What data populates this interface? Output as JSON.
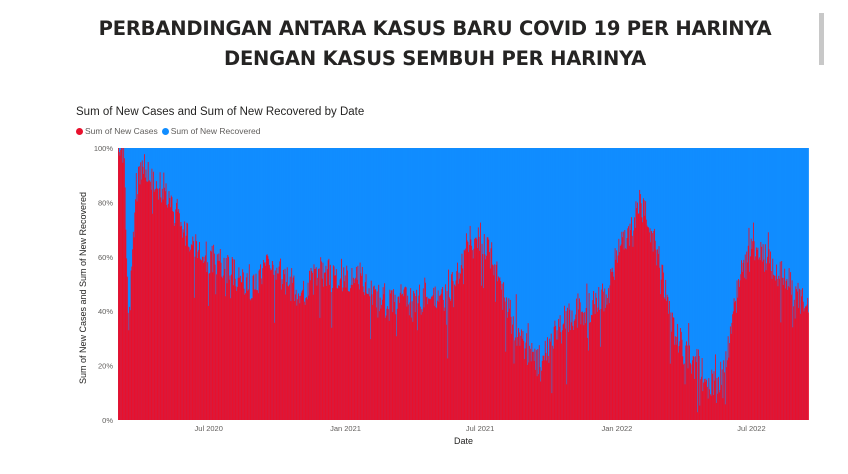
{
  "page": {
    "title_line1": "PERBANDINGAN ANTARA KASUS BARU COVID 19 PER HARINYA",
    "title_line2": "DENGAN KASUS SEMBUH PER HARINYA"
  },
  "colors": {
    "new_cases": "#e8112d",
    "new_recovered": "#118dff"
  },
  "chart_data": {
    "type": "bar",
    "stacking": "100% stacked column",
    "title": "Sum of New Cases and Sum of New Recovered by Date",
    "xlabel": "Date",
    "ylabel": "Sum of New Cases and Sum of New Recovered",
    "ylim": [
      0,
      100
    ],
    "y_ticks": [
      "0%",
      "20%",
      "40%",
      "60%",
      "80%",
      "100%"
    ],
    "x_ticks": [
      "Jul 2020",
      "Jan 2021",
      "Jul 2021",
      "Jan 2022",
      "Jul 2022"
    ],
    "x_range": [
      "2020-03-01",
      "2022-09-15"
    ],
    "legend_position": "top-left",
    "grid": false,
    "series": [
      {
        "name": "Sum of New Cases",
        "color": "#e8112d",
        "sampled_points": [
          [
            "2020-03-02",
            100
          ],
          [
            "2020-03-08",
            100
          ],
          [
            "2020-03-15",
            35
          ],
          [
            "2020-03-25",
            85
          ],
          [
            "2020-04-05",
            93
          ],
          [
            "2020-04-15",
            88
          ],
          [
            "2020-05-01",
            85
          ],
          [
            "2020-05-15",
            77
          ],
          [
            "2020-06-01",
            68
          ],
          [
            "2020-06-15",
            62
          ],
          [
            "2020-07-01",
            60
          ],
          [
            "2020-07-15",
            58
          ],
          [
            "2020-08-01",
            55
          ],
          [
            "2020-08-15",
            50
          ],
          [
            "2020-09-01",
            48
          ],
          [
            "2020-09-15",
            55
          ],
          [
            "2020-10-01",
            55
          ],
          [
            "2020-10-15",
            50
          ],
          [
            "2020-11-01",
            45
          ],
          [
            "2020-11-15",
            50
          ],
          [
            "2020-12-01",
            55
          ],
          [
            "2020-12-15",
            52
          ],
          [
            "2021-01-01",
            52
          ],
          [
            "2021-01-15",
            55
          ],
          [
            "2021-02-01",
            48
          ],
          [
            "2021-02-15",
            45
          ],
          [
            "2021-03-01",
            42
          ],
          [
            "2021-03-15",
            45
          ],
          [
            "2021-04-01",
            42
          ],
          [
            "2021-04-15",
            45
          ],
          [
            "2021-05-01",
            45
          ],
          [
            "2021-05-15",
            45
          ],
          [
            "2021-06-01",
            55
          ],
          [
            "2021-06-15",
            65
          ],
          [
            "2021-07-01",
            68
          ],
          [
            "2021-07-15",
            62
          ],
          [
            "2021-08-01",
            45
          ],
          [
            "2021-08-15",
            35
          ],
          [
            "2021-09-01",
            25
          ],
          [
            "2021-09-15",
            22
          ],
          [
            "2021-10-01",
            25
          ],
          [
            "2021-10-15",
            35
          ],
          [
            "2021-11-01",
            38
          ],
          [
            "2021-11-15",
            40
          ],
          [
            "2021-12-01",
            42
          ],
          [
            "2021-12-15",
            45
          ],
          [
            "2022-01-01",
            60
          ],
          [
            "2022-01-15",
            70
          ],
          [
            "2022-02-01",
            80
          ],
          [
            "2022-02-15",
            70
          ],
          [
            "2022-03-01",
            55
          ],
          [
            "2022-03-15",
            35
          ],
          [
            "2022-04-01",
            25
          ],
          [
            "2022-04-15",
            22
          ],
          [
            "2022-05-01",
            18
          ],
          [
            "2022-05-15",
            10
          ],
          [
            "2022-06-01",
            30
          ],
          [
            "2022-06-15",
            52
          ],
          [
            "2022-07-01",
            62
          ],
          [
            "2022-07-15",
            60
          ],
          [
            "2022-08-01",
            55
          ],
          [
            "2022-08-15",
            52
          ],
          [
            "2022-09-01",
            45
          ],
          [
            "2022-09-15",
            40
          ]
        ]
      },
      {
        "name": "Sum of New Recovered",
        "color": "#118dff",
        "rule": "100 minus Sum of New Cases"
      }
    ]
  }
}
